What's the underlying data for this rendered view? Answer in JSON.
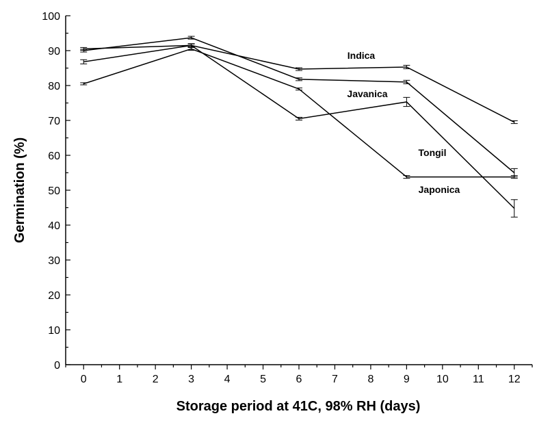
{
  "chart_data": {
    "type": "line",
    "xlabel": "Storage period at 41C, 98% RH (days)",
    "ylabel": "Germination (%)",
    "xlim": [
      -0.5,
      12.5
    ],
    "ylim": [
      0,
      100
    ],
    "x_ticks": [
      0,
      1,
      2,
      3,
      4,
      5,
      6,
      7,
      8,
      9,
      10,
      11,
      12
    ],
    "y_ticks": [
      0,
      10,
      20,
      30,
      40,
      50,
      60,
      70,
      80,
      90,
      100
    ],
    "grid": false,
    "legend": "none (series labeled directly on plot)",
    "series": [
      {
        "name": "Indica",
        "x": [
          0,
          3,
          6,
          9,
          12
        ],
        "y": [
          90.5,
          91.5,
          84.7,
          85.3,
          69.5
        ],
        "err": [
          0.4,
          0.4,
          0.4,
          0.5,
          0.4
        ]
      },
      {
        "name": "Javanica",
        "x": [
          0,
          3,
          6,
          9,
          12
        ],
        "y": [
          90.0,
          93.7,
          81.8,
          81.0,
          55.0
        ],
        "err": [
          0.4,
          0.4,
          0.4,
          0.5,
          1.2
        ]
      },
      {
        "name": "Tongil",
        "x": [
          0,
          3,
          6,
          9,
          12
        ],
        "y": [
          86.8,
          91.5,
          70.5,
          75.3,
          44.8
        ],
        "err": [
          0.6,
          0.5,
          0.4,
          1.3,
          2.5
        ]
      },
      {
        "name": "Japonica",
        "x": [
          0,
          3,
          6,
          9,
          12
        ],
        "y": [
          80.5,
          90.5,
          79.0,
          53.8,
          53.8
        ],
        "err": [
          0.3,
          0.4,
          0.3,
          0.4,
          0.4
        ]
      }
    ]
  }
}
